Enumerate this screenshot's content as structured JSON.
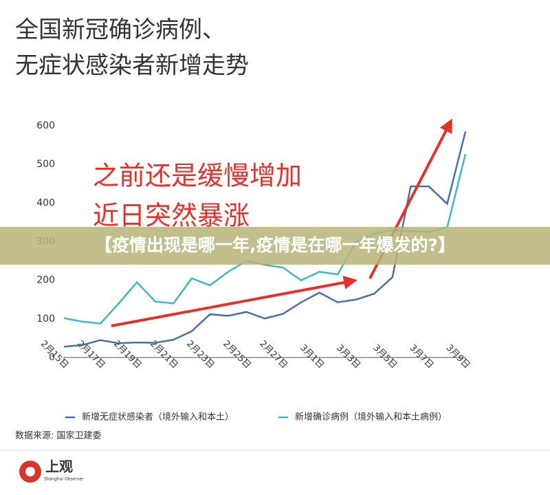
{
  "chart_data": {
    "type": "line",
    "title": [
      "全国新冠确诊病例、",
      "无症状感染者新增走势"
    ],
    "annotation": [
      "之前还是缓慢增加",
      "近日突然暴涨"
    ],
    "categories": [
      "2月15日",
      null,
      "2月17日",
      null,
      "2月19日",
      null,
      "2月21日",
      null,
      "2月23日",
      null,
      "2月25日",
      null,
      "2月27日",
      null,
      "3月1日",
      null,
      "3月3日",
      null,
      "3月5日",
      null,
      "3月7日",
      null,
      "3月9日"
    ],
    "series": [
      {
        "name": "新增无症状感染者（境外输入和本土）",
        "color": "#4a6ea9",
        "values": [
          28,
          32,
          45,
          37,
          39,
          38,
          46,
          68,
          112,
          108,
          118,
          101,
          113,
          143,
          168,
          143,
          150,
          165,
          208,
          443,
          443,
          398,
          585
        ]
      },
      {
        "name": "新增确诊病例（境外输入和本土病例）",
        "color": "#3bb8c4",
        "values": [
          102,
          93,
          88,
          140,
          195,
          145,
          140,
          205,
          187,
          222,
          250,
          240,
          233,
          200,
          222,
          215,
          300,
          320,
          330,
          327,
          325,
          337,
          527
        ]
      }
    ],
    "ylim": [
      0,
      600
    ],
    "yticks": [
      0,
      100,
      200,
      300,
      400,
      500,
      600
    ],
    "source": "数据来源: 国家卫建委"
  },
  "banner": "【疫情出现是哪一年,疫情是在哪一年爆发的?】",
  "logo": {
    "name": "上观",
    "subtitle": "Shanghai Observer"
  }
}
